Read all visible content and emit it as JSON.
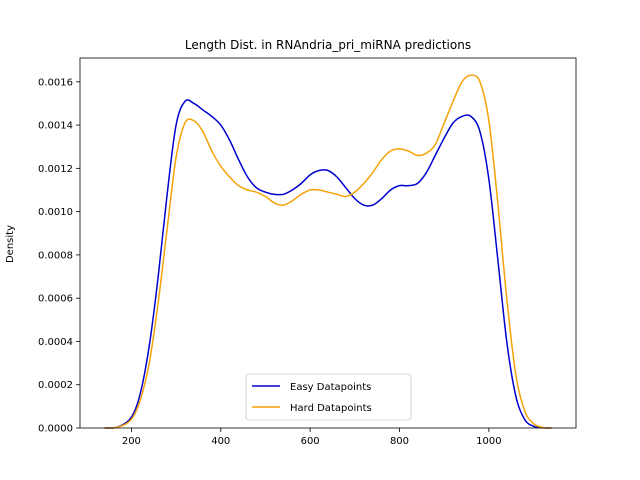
{
  "chart_data": {
    "type": "line",
    "title": "Length Dist. in RNAndria_pri_miRNA predictions",
    "xlabel": "",
    "ylabel": "Density",
    "xlim": [
      85,
      1195
    ],
    "ylim": [
      0,
      0.00171
    ],
    "xticks": [
      200,
      400,
      600,
      800,
      1000
    ],
    "yticks": [
      0.0,
      0.0002,
      0.0004,
      0.0006,
      0.0008,
      0.001,
      0.0012,
      0.0014,
      0.0016
    ],
    "ytick_labels": [
      "0.0000",
      "0.0002",
      "0.0004",
      "0.0006",
      "0.0008",
      "0.0010",
      "0.0012",
      "0.0014",
      "0.0016"
    ],
    "grid": false,
    "legend_position": "lower-center",
    "series": [
      {
        "name": "Easy Datapoints",
        "color": "#0000cc",
        "points": [
          [
            140,
            0.0
          ],
          [
            170,
            5e-06
          ],
          [
            200,
            5e-05
          ],
          [
            220,
            0.00016
          ],
          [
            240,
            0.00038
          ],
          [
            260,
            0.0007
          ],
          [
            280,
            0.00108
          ],
          [
            300,
            0.0014
          ],
          [
            320,
            0.00151
          ],
          [
            340,
            0.0015
          ],
          [
            360,
            0.00147
          ],
          [
            380,
            0.00144
          ],
          [
            400,
            0.0014
          ],
          [
            420,
            0.00133
          ],
          [
            440,
            0.00124
          ],
          [
            460,
            0.00116
          ],
          [
            480,
            0.00111
          ],
          [
            500,
            0.00109
          ],
          [
            520,
            0.00108
          ],
          [
            540,
            0.00108
          ],
          [
            560,
            0.0011
          ],
          [
            580,
            0.00113
          ],
          [
            600,
            0.00117
          ],
          [
            620,
            0.00119
          ],
          [
            640,
            0.00119
          ],
          [
            660,
            0.00116
          ],
          [
            680,
            0.00111
          ],
          [
            700,
            0.00106
          ],
          [
            720,
            0.00103
          ],
          [
            740,
            0.00103
          ],
          [
            760,
            0.00106
          ],
          [
            780,
            0.0011
          ],
          [
            800,
            0.00112
          ],
          [
            820,
            0.00112
          ],
          [
            840,
            0.00113
          ],
          [
            860,
            0.00118
          ],
          [
            880,
            0.00126
          ],
          [
            900,
            0.00134
          ],
          [
            920,
            0.00141
          ],
          [
            940,
            0.00144
          ],
          [
            960,
            0.00144
          ],
          [
            980,
            0.00137
          ],
          [
            1000,
            0.00115
          ],
          [
            1020,
            0.00078
          ],
          [
            1040,
            0.0004
          ],
          [
            1060,
            0.00015
          ],
          [
            1080,
            4e-05
          ],
          [
            1100,
            8e-06
          ],
          [
            1120,
            1e-06
          ],
          [
            1140,
            0.0
          ]
        ]
      },
      {
        "name": "Hard Datapoints",
        "color": "#f5a20a",
        "points": [
          [
            140,
            0.0
          ],
          [
            170,
            4e-06
          ],
          [
            200,
            4e-05
          ],
          [
            220,
            0.00013
          ],
          [
            240,
            0.0003
          ],
          [
            260,
            0.00058
          ],
          [
            280,
            0.00092
          ],
          [
            300,
            0.00125
          ],
          [
            320,
            0.00141
          ],
          [
            340,
            0.00142
          ],
          [
            360,
            0.00137
          ],
          [
            380,
            0.00128
          ],
          [
            400,
            0.00121
          ],
          [
            420,
            0.00116
          ],
          [
            440,
            0.00112
          ],
          [
            460,
            0.0011
          ],
          [
            480,
            0.00109
          ],
          [
            500,
            0.00107
          ],
          [
            520,
            0.00104
          ],
          [
            540,
            0.00103
          ],
          [
            560,
            0.00105
          ],
          [
            580,
            0.00108
          ],
          [
            600,
            0.0011
          ],
          [
            620,
            0.0011
          ],
          [
            640,
            0.00109
          ],
          [
            660,
            0.00108
          ],
          [
            680,
            0.00107
          ],
          [
            700,
            0.00109
          ],
          [
            720,
            0.00113
          ],
          [
            740,
            0.00118
          ],
          [
            760,
            0.00124
          ],
          [
            780,
            0.00128
          ],
          [
            800,
            0.00129
          ],
          [
            820,
            0.00128
          ],
          [
            840,
            0.00126
          ],
          [
            860,
            0.00127
          ],
          [
            880,
            0.00131
          ],
          [
            900,
            0.00141
          ],
          [
            920,
            0.00151
          ],
          [
            940,
            0.0016
          ],
          [
            960,
            0.00163
          ],
          [
            980,
            0.0016
          ],
          [
            1000,
            0.00142
          ],
          [
            1020,
            0.00104
          ],
          [
            1040,
            0.0006
          ],
          [
            1060,
            0.00025
          ],
          [
            1080,
            8e-05
          ],
          [
            1100,
            2e-05
          ],
          [
            1120,
            3e-06
          ],
          [
            1140,
            0.0
          ]
        ]
      }
    ]
  }
}
